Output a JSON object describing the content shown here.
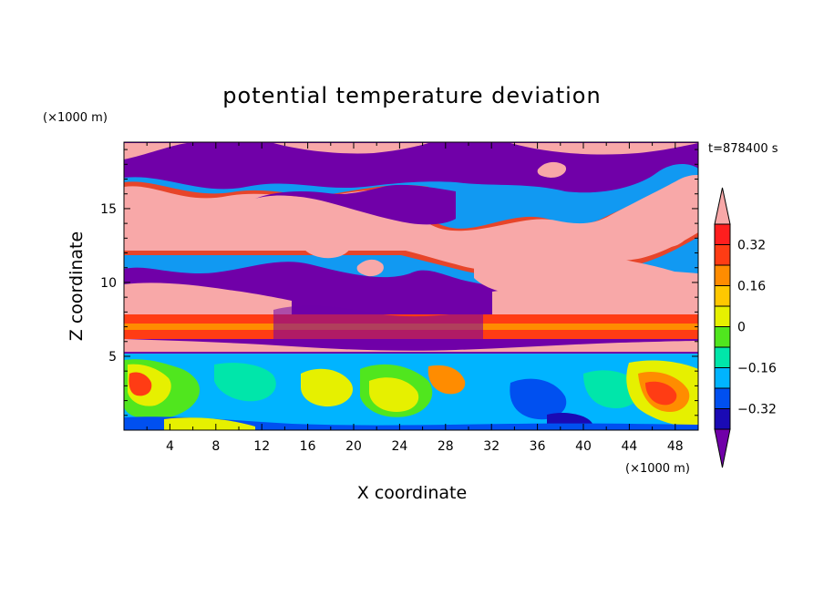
{
  "chart_data": {
    "type": "heatmap",
    "title": "potential temperature deviation",
    "xlabel": "X coordinate",
    "ylabel": "Z coordinate",
    "x_unit": "(×1000 m)",
    "y_unit": "(×1000 m)",
    "time_label": "t=878400 s",
    "xlim": [
      0,
      50
    ],
    "ylim": [
      0,
      19.5
    ],
    "x_ticks": [
      "4",
      "8",
      "12",
      "16",
      "20",
      "24",
      "28",
      "32",
      "36",
      "40",
      "44",
      "48"
    ],
    "y_ticks": [
      "5",
      "10",
      "15"
    ],
    "x_tick_values": [
      4,
      8,
      12,
      16,
      20,
      24,
      28,
      32,
      36,
      40,
      44,
      48
    ],
    "y_tick_values": [
      5,
      10,
      15
    ],
    "colorbar": {
      "labels": [
        "0.32",
        "0.16",
        "0",
        "-0.16",
        "-0.32"
      ],
      "label_values": [
        0.32,
        0.16,
        0,
        -0.16,
        -0.32
      ],
      "levels": [
        -0.4,
        -0.32,
        -0.24,
        -0.16,
        -0.08,
        0,
        0.08,
        0.16,
        0.24,
        0.32,
        0.4
      ],
      "colors": [
        "#7000a8",
        "#1a0ab4",
        "#0050f0",
        "#00b4ff",
        "#00e6aa",
        "#50e61e",
        "#e6f000",
        "#ffc800",
        "#ff8c00",
        "#ff3c14",
        "#ff1e1e",
        "#f8a8a8"
      ],
      "extend": "both"
    },
    "field_description": "upper layer alternates between pink (> 0.4) and purple (< -0.4) structures; thin warm band near z≈6.5-7.5; lower boundary layer below z≈5 mixed turbulent field with cyan, yellow, red and blue patches"
  }
}
